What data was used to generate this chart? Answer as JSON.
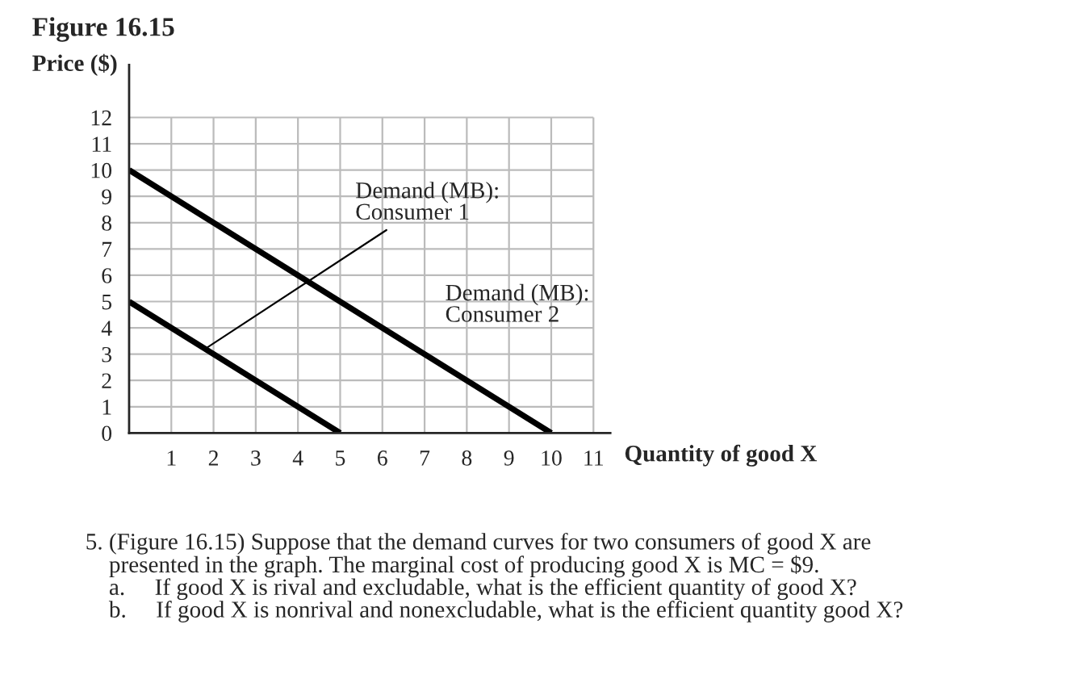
{
  "chart_data": {
    "type": "line",
    "title": "Figure 16.15",
    "xlabel": "Quantity of good X",
    "ylabel": "Price ($)",
    "series": [
      {
        "name": "Demand (MB):\nConsumer 1",
        "color": "#000000",
        "x": [
          0,
          5
        ],
        "values": [
          5,
          0
        ]
      },
      {
        "name": "Demand (MB):\nConsumer 2",
        "color": "#000000",
        "x": [
          0,
          10
        ],
        "values": [
          10,
          0
        ]
      }
    ],
    "xlim": [
      0,
      11.4
    ],
    "ylim": [
      0,
      14
    ],
    "xticks": [
      1,
      2,
      3,
      4,
      5,
      6,
      7,
      8,
      9,
      10,
      11
    ],
    "yticks": [
      0,
      1,
      2,
      3,
      4,
      5,
      6,
      7,
      8,
      9,
      10,
      11,
      12
    ],
    "grid": true,
    "marker": "none",
    "line_style": "solid",
    "annotations": [
      "5. (Figure 16.15) Suppose that the demand curves for two consumers of good X are\n    presented in the graph. The marginal cost of producing good X is MC = $9.\n    a.     If good X is rival and excludable, what is the efficient quantity of good X?\n    b.     If good X is nonrival and nonexcludable, what is the efficient quantity good X?"
    ]
  }
}
